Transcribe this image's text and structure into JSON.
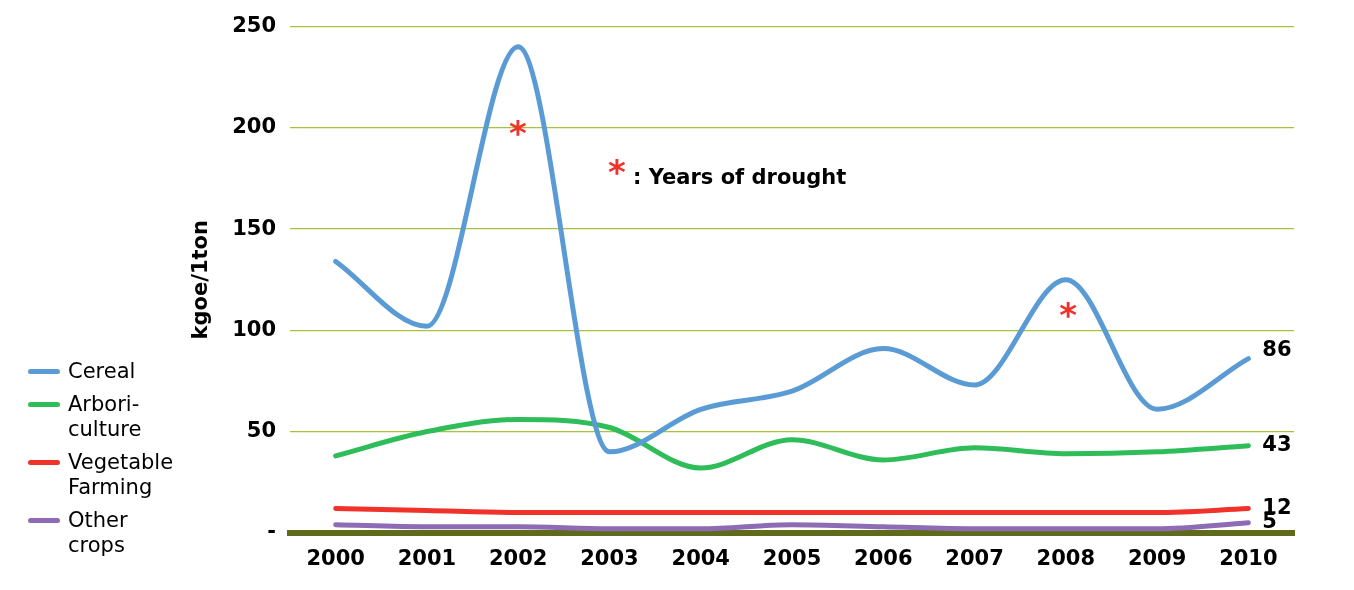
{
  "chart_data": {
    "type": "line",
    "ylabel": "kgoe/1ton",
    "categories": [
      "2000",
      "2001",
      "2002",
      "2003",
      "2004",
      "2005",
      "2006",
      "2007",
      "2008",
      "2009",
      "2010"
    ],
    "series": [
      {
        "name": "Cereal",
        "color": "#5b9bd5",
        "values": [
          134,
          102,
          240,
          40,
          61,
          70,
          91,
          73,
          125,
          61,
          86
        ],
        "value_labels": [
          null,
          null,
          null,
          null,
          null,
          null,
          null,
          null,
          null,
          null,
          "86"
        ]
      },
      {
        "name": "Arbori-culture",
        "color": "#2ebd59",
        "values": [
          38,
          50,
          56,
          52,
          32,
          46,
          36,
          42,
          39,
          40,
          43
        ],
        "value_labels": [
          null,
          null,
          null,
          null,
          null,
          null,
          null,
          null,
          null,
          null,
          "43"
        ]
      },
      {
        "name": "Vegetable Farming",
        "color": "#f0332a",
        "values": [
          12,
          11,
          10,
          10,
          10,
          10,
          10,
          10,
          10,
          10,
          12
        ],
        "value_labels": [
          null,
          null,
          null,
          null,
          null,
          null,
          null,
          null,
          null,
          null,
          "12"
        ]
      },
      {
        "name": "Other crops",
        "color": "#8e6bb5",
        "values": [
          4,
          3,
          3,
          2,
          2,
          4,
          3,
          2,
          2,
          2,
          5
        ],
        "value_labels": [
          null,
          null,
          null,
          null,
          null,
          null,
          null,
          null,
          null,
          null,
          "5"
        ]
      }
    ],
    "ylim": [
      0,
      250
    ],
    "yticks": [
      {
        "value": 0,
        "label": "-"
      },
      50,
      100,
      150,
      200,
      250
    ],
    "annotations": [
      "*",
      "*",
      "* : Years of drought"
    ],
    "grid": "y",
    "legend": "left",
    "marker": "none",
    "line_style": "solid"
  }
}
